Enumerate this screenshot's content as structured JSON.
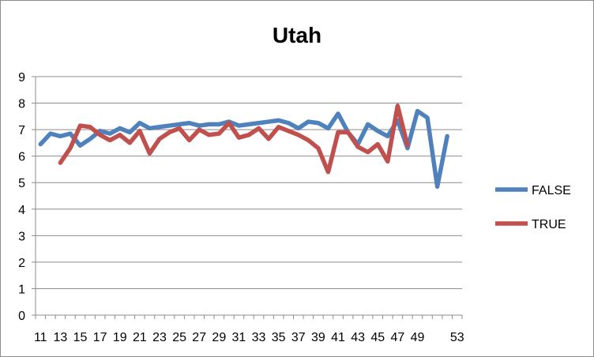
{
  "chart_data": {
    "type": "line",
    "title": "Utah",
    "xlabel": "",
    "ylabel": "",
    "ylim": [
      0,
      9
    ],
    "yticks": [
      0,
      1,
      2,
      3,
      4,
      5,
      6,
      7,
      8,
      9
    ],
    "x": [
      11,
      12,
      13,
      14,
      15,
      16,
      17,
      18,
      19,
      20,
      21,
      22,
      23,
      24,
      25,
      26,
      27,
      28,
      29,
      30,
      31,
      32,
      33,
      34,
      35,
      36,
      37,
      38,
      39,
      40,
      41,
      42,
      43,
      44,
      45,
      46,
      47,
      48,
      49,
      50,
      51,
      52,
      53
    ],
    "xtick_labels": [
      "11",
      "13",
      "15",
      "17",
      "19",
      "21",
      "23",
      "25",
      "27",
      "29",
      "31",
      "33",
      "35",
      "37",
      "39",
      "41",
      "43",
      "45",
      "47",
      "49",
      "53"
    ],
    "grid": true,
    "legend_position": "right",
    "series": [
      {
        "name": "FALSE",
        "color": "#4f81bd",
        "values": [
          6.45,
          6.85,
          6.75,
          6.85,
          6.4,
          6.65,
          6.95,
          6.85,
          7.05,
          6.9,
          7.25,
          7.05,
          7.1,
          7.15,
          7.2,
          7.25,
          7.15,
          7.2,
          7.2,
          7.3,
          7.15,
          7.2,
          7.25,
          7.3,
          7.35,
          7.25,
          7.05,
          7.3,
          7.25,
          7.05,
          7.6,
          6.9,
          6.45,
          7.2,
          6.95,
          6.75,
          7.35,
          6.3,
          7.7,
          7.45,
          4.85,
          6.75,
          null
        ]
      },
      {
        "name": "TRUE",
        "color": "#c0504d",
        "values": [
          null,
          null,
          5.75,
          6.3,
          7.15,
          7.1,
          6.8,
          6.6,
          6.8,
          6.5,
          6.95,
          6.1,
          6.65,
          6.9,
          7.05,
          6.6,
          7.0,
          6.8,
          6.85,
          7.25,
          6.7,
          6.8,
          7.05,
          6.65,
          7.1,
          6.95,
          6.8,
          6.6,
          6.3,
          5.4,
          6.9,
          6.9,
          6.35,
          6.15,
          6.45,
          5.8,
          7.9,
          6.4,
          null,
          null,
          null,
          null,
          null
        ]
      }
    ]
  }
}
